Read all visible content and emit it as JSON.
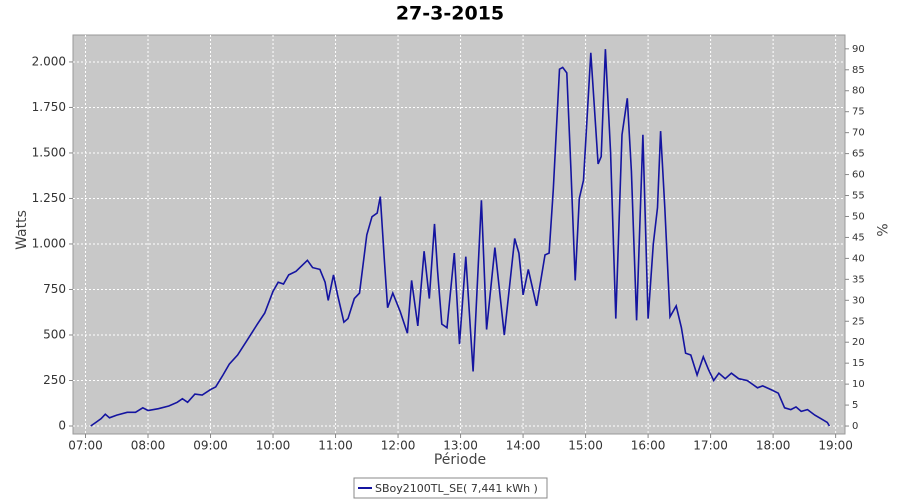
{
  "chart_data": {
    "type": "line",
    "title": "27-3-2015",
    "xlabel": "Période",
    "ylabel": "Watts",
    "y2label": "%",
    "x": [
      "07:05",
      "07:10",
      "07:15",
      "07:19",
      "07:23",
      "07:30",
      "07:40",
      "07:48",
      "07:55",
      "08:00",
      "08:10",
      "08:20",
      "08:28",
      "08:33",
      "08:38",
      "08:45",
      "08:52",
      "09:00",
      "09:05",
      "09:12",
      "09:18",
      "09:26",
      "09:35",
      "09:45",
      "09:52",
      "10:00",
      "10:05",
      "10:10",
      "10:15",
      "10:22",
      "10:33",
      "10:38",
      "10:45",
      "10:50",
      "10:53",
      "10:58",
      "11:02",
      "11:08",
      "11:12",
      "11:18",
      "11:23",
      "11:30",
      "11:35",
      "11:40",
      "11:43",
      "11:47",
      "11:50",
      "11:55",
      "12:02",
      "12:09",
      "12:13",
      "12:19",
      "12:25",
      "12:30",
      "12:35",
      "12:38",
      "12:42",
      "12:47",
      "12:54",
      "12:59",
      "13:05",
      "13:12",
      "13:20",
      "13:25",
      "13:33",
      "13:42",
      "13:52",
      "13:56",
      "14:00",
      "14:05",
      "14:13",
      "14:21",
      "14:25",
      "14:29",
      "14:35",
      "14:38",
      "14:42",
      "14:46",
      "14:50",
      "14:54",
      "14:58",
      "15:05",
      "15:12",
      "15:15",
      "15:19",
      "15:24",
      "15:29",
      "15:35",
      "15:40",
      "15:44",
      "15:49",
      "15:55",
      "16:00",
      "16:05",
      "16:09",
      "16:12",
      "16:16",
      "16:21",
      "16:27",
      "16:32",
      "16:36",
      "16:41",
      "16:47",
      "16:53",
      "16:58",
      "17:03",
      "17:08",
      "17:14",
      "17:20",
      "17:27",
      "17:35",
      "17:40",
      "17:45",
      "17:50",
      "17:58",
      "18:05",
      "18:11",
      "18:17",
      "18:22",
      "18:27",
      "18:33",
      "18:40",
      "18:46",
      "18:52",
      "18:54"
    ],
    "series": [
      {
        "name": "SBoy2100TL_SE( 7,441 kWh )",
        "color": "#1414a0",
        "values": [
          0,
          20,
          40,
          65,
          45,
          60,
          75,
          75,
          100,
          85,
          95,
          110,
          130,
          150,
          130,
          175,
          170,
          200,
          215,
          280,
          340,
          390,
          470,
          560,
          620,
          740,
          790,
          780,
          830,
          850,
          910,
          870,
          860,
          790,
          690,
          830,
          720,
          570,
          590,
          700,
          730,
          1050,
          1150,
          1170,
          1260,
          900,
          650,
          730,
          630,
          510,
          800,
          550,
          960,
          700,
          1110,
          850,
          560,
          540,
          950,
          450,
          930,
          300,
          1240,
          530,
          980,
          500,
          1030,
          950,
          720,
          860,
          660,
          940,
          950,
          1300,
          1960,
          1970,
          1940,
          1400,
          800,
          1250,
          1350,
          2050,
          1440,
          1480,
          2070,
          1500,
          590,
          1600,
          1800,
          1400,
          580,
          1600,
          590,
          1000,
          1200,
          1620,
          1200,
          600,
          660,
          540,
          400,
          390,
          280,
          380,
          310,
          250,
          290,
          260,
          290,
          260,
          250,
          230,
          210,
          220,
          200,
          180,
          100,
          90,
          105,
          80,
          90,
          60,
          40,
          20,
          0
        ]
      }
    ],
    "xlim": [
      "06:48",
      "19:09"
    ],
    "xticks": [
      "07:00",
      "08:00",
      "09:00",
      "10:00",
      "11:00",
      "12:00",
      "13:00",
      "14:00",
      "15:00",
      "16:00",
      "17:00",
      "18:00",
      "19:00"
    ],
    "ylim": [
      -44,
      2148
    ],
    "yticks": [
      0,
      250,
      500,
      750,
      {
        "value": 1000,
        "label": "1.000"
      },
      {
        "value": 1250,
        "label": "1.250"
      },
      {
        "value": 1500,
        "label": "1.500"
      },
      {
        "value": 1750,
        "label": "1.750"
      },
      {
        "value": 2000,
        "label": "2.000"
      }
    ],
    "y2lim": [
      -1.9,
      93.3
    ],
    "y2ticks": [
      0,
      5,
      10,
      15,
      20,
      25,
      30,
      35,
      40,
      45,
      50,
      55,
      60,
      65,
      70,
      75,
      80,
      85,
      90
    ],
    "grid": true
  }
}
